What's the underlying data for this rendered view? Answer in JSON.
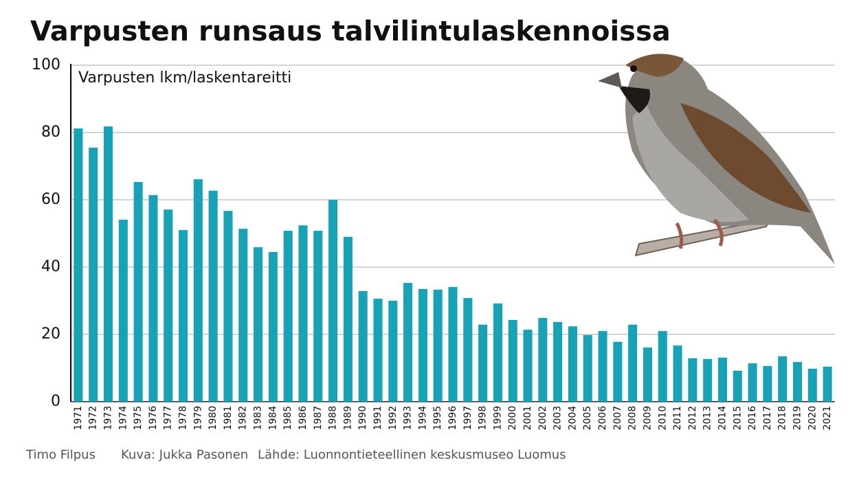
{
  "chart_data": {
    "type": "bar",
    "title": "Varpusten runsaus talvilintulaskennoissa",
    "y_label": "Varpusten lkm/laskentareitti",
    "categories": [
      "1971",
      "1972",
      "1973",
      "1974",
      "1975",
      "1976",
      "1977",
      "1978",
      "1979",
      "1980",
      "1981",
      "1982",
      "1983",
      "1984",
      "1985",
      "1986",
      "1987",
      "1988",
      "1989",
      "1990",
      "1991",
      "1992",
      "1993",
      "1994",
      "1995",
      "1996",
      "1997",
      "1998",
      "1999",
      "2000",
      "2001",
      "2002",
      "2003",
      "2004",
      "2005",
      "2006",
      "2007",
      "2008",
      "2009",
      "2010",
      "2011",
      "2012",
      "2013",
      "2014",
      "2015",
      "2016",
      "2017",
      "2018",
      "2019",
      "2020",
      "2021"
    ],
    "values": [
      81.2,
      75.5,
      81.8,
      54.1,
      65.3,
      61.4,
      57.1,
      51.0,
      66.1,
      62.7,
      56.7,
      51.4,
      45.9,
      44.5,
      50.8,
      52.4,
      50.8,
      60.0,
      49.0,
      32.9,
      30.6,
      30.0,
      35.3,
      33.5,
      33.3,
      34.1,
      30.8,
      22.9,
      29.2,
      24.3,
      21.4,
      24.9,
      23.7,
      22.4,
      19.8,
      21.0,
      17.8,
      22.9,
      16.1,
      21.0,
      16.7,
      12.9,
      12.7,
      13.1,
      9.2,
      11.4,
      10.6,
      13.5,
      11.8,
      9.8,
      10.4
    ],
    "color": "#17a2b5",
    "ylim": [
      0,
      100
    ],
    "yticks": [
      0,
      20,
      40,
      60,
      80,
      100
    ],
    "grid": true,
    "credits": [
      "Timo Filpus",
      "Kuva: Jukka Pasonen",
      "Lähde: Luonnontieteellinen keskusmuseo Luomus"
    ]
  }
}
